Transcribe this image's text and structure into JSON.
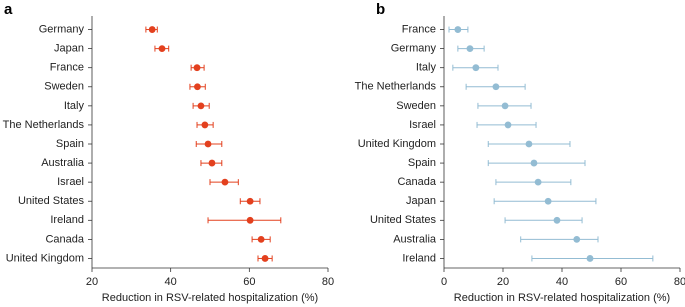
{
  "chart_data": [
    {
      "type": "dot",
      "label": "a",
      "x_label": "Reduction in RSV-related hospitalization (%)",
      "color": "#e3401e",
      "xlim": [
        20,
        80
      ],
      "xticks": [
        20,
        40,
        60,
        80
      ],
      "categories": [
        "Germany",
        "Japan",
        "France",
        "Sweden",
        "Italy",
        "The Netherlands",
        "Spain",
        "Australia",
        "Israel",
        "United States",
        "Ireland",
        "Canada",
        "United Kingdom"
      ],
      "values": [
        35.3,
        37.8,
        46.7,
        46.8,
        47.7,
        48.7,
        49.5,
        50.5,
        53.8,
        60.2,
        60.2,
        63,
        64
      ],
      "error_low": [
        33.7,
        36,
        45.2,
        44.9,
        45.7,
        46.7,
        46.5,
        47.7,
        50,
        57.7,
        49.5,
        60.7,
        62.2
      ],
      "error_high": [
        36.6,
        39.5,
        48.5,
        48.8,
        49.8,
        50.8,
        53,
        53,
        57.2,
        62.7,
        68,
        65.3,
        65.8
      ]
    },
    {
      "type": "dot",
      "label": "b",
      "x_label": "Reduction in RSV-related hospitalization (%)",
      "color": "#93bcd3",
      "xlim": [
        0,
        80
      ],
      "xticks": [
        0,
        20,
        40,
        60,
        80
      ],
      "categories": [
        "France",
        "Germany",
        "Italy",
        "The Netherlands",
        "Sweden",
        "Israel",
        "United Kingdom",
        "Spain",
        "Canada",
        "Japan",
        "United States",
        "Australia",
        "Ireland"
      ],
      "values": [
        4.7,
        8.8,
        10.8,
        17.6,
        20.7,
        21.7,
        28.8,
        30.5,
        31.9,
        35.3,
        38.3,
        45,
        49.5
      ],
      "error_low": [
        1.7,
        4.7,
        3,
        7.5,
        11.5,
        11.2,
        15,
        15,
        17.6,
        17,
        20.7,
        26,
        29.8
      ],
      "error_high": [
        8.1,
        13.6,
        18.3,
        27.5,
        29.5,
        31.2,
        42.7,
        47.8,
        43,
        51.5,
        46.8,
        52.2,
        70.8
      ]
    }
  ]
}
